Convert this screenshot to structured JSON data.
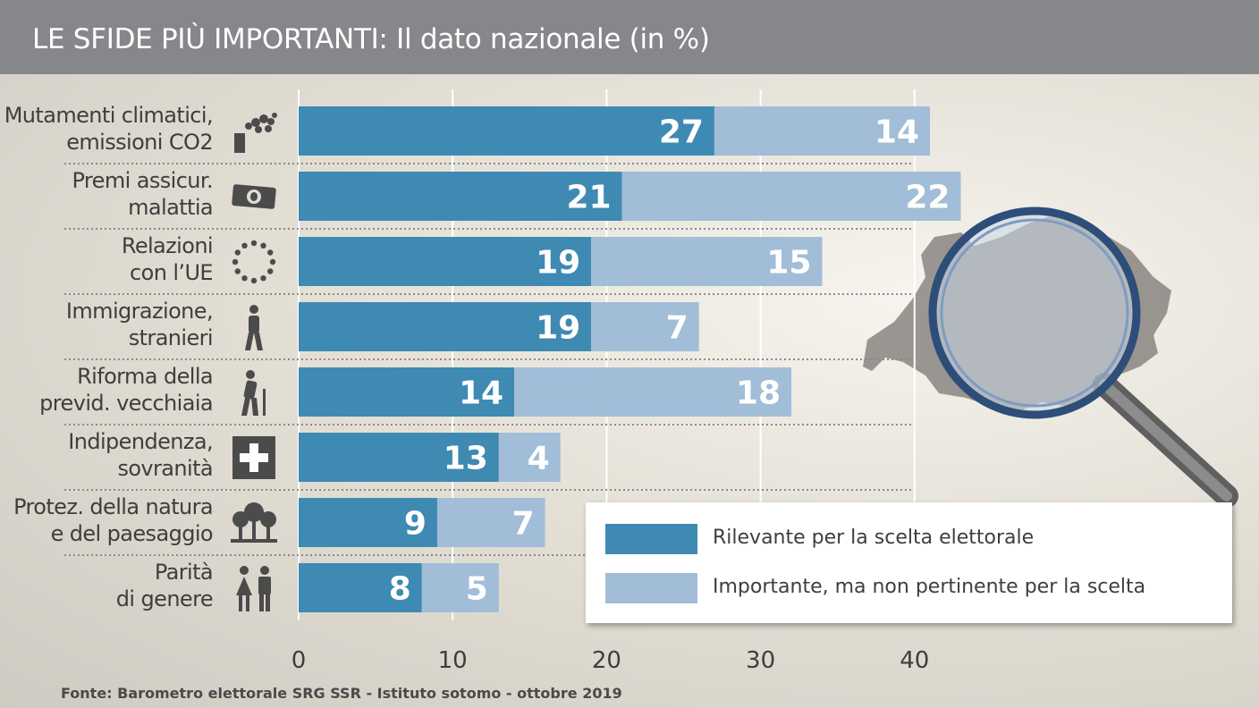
{
  "title": "LE SFIDE PIÙ IMPORTANTI: Il dato nazionale (in %)",
  "source": "Fonte: Barometro elettorale SRG SSR - Istituto sotomo - ottobre 2019",
  "colors": {
    "relevant": "#3e8ab3",
    "important": "#a2bdd7",
    "title_bar": "#85878a",
    "icon": "#4b4b4b"
  },
  "legend": [
    {
      "label": "Rilevante per la scelta elettorale",
      "color": "#3e8ab3"
    },
    {
      "label": "Importante, ma non pertinente per la scelta",
      "color": "#a2bdd7"
    }
  ],
  "categories": [
    {
      "lines": [
        "Mutamenti climatici,",
        "emissioni CO2"
      ],
      "icon": "factory-icon"
    },
    {
      "lines": [
        "Premi assicur.",
        "malattia"
      ],
      "icon": "banknote-icon"
    },
    {
      "lines": [
        "Relazioni",
        "con l’UE"
      ],
      "icon": "eu-stars-icon"
    },
    {
      "lines": [
        "Immigrazione,",
        "stranieri"
      ],
      "icon": "walking-person-icon"
    },
    {
      "lines": [
        "Riforma della",
        "previd. vecchiaia"
      ],
      "icon": "elderly-person-icon"
    },
    {
      "lines": [
        "Indipendenza,",
        "sovranità"
      ],
      "icon": "swiss-cross-icon"
    },
    {
      "lines": [
        "Protez. della natura",
        "e del paesaggio"
      ],
      "icon": "trees-icon"
    },
    {
      "lines": [
        "Parità",
        "di genere"
      ],
      "icon": "woman-man-icon"
    }
  ],
  "chart_data": {
    "type": "bar",
    "orientation": "horizontal",
    "stacked": true,
    "title": "LE SFIDE PIÙ IMPORTANTI: Il dato nazionale (in %)",
    "categories": [
      "Mutamenti climatici, emissioni CO2",
      "Premi assicur. malattia",
      "Relazioni con l’UE",
      "Immigrazione, stranieri",
      "Riforma della previd. vecchiaia",
      "Indipendenza, sovranità",
      "Protez. della natura e del paesaggio",
      "Parità di genere"
    ],
    "series": [
      {
        "name": "Rilevante per la scelta elettorale",
        "values": [
          27,
          21,
          19,
          19,
          14,
          13,
          9,
          8
        ]
      },
      {
        "name": "Importante, ma non pertinente per la scelta",
        "values": [
          14,
          22,
          15,
          7,
          18,
          4,
          7,
          5
        ]
      }
    ],
    "xticks": [
      0,
      10,
      20,
      30,
      40
    ],
    "xlim": [
      0,
      40
    ],
    "grid": true,
    "legend_position": "bottom-right"
  }
}
